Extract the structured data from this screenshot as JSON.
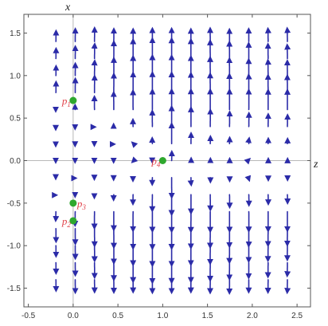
{
  "chart_data": {
    "type": "scatter",
    "subtype": "stream-plot",
    "title": "",
    "xlabel": "z",
    "ylabel": "x",
    "xlim": [
      -0.55,
      2.65
    ],
    "ylim": [
      -1.72,
      1.72
    ],
    "xticks": [
      -0.5,
      0.0,
      0.5,
      1.0,
      1.5,
      2.0,
      2.5
    ],
    "xtick_labels": [
      "-0.5",
      "0.0",
      "0.5",
      "1.0",
      "1.5",
      "2.0",
      "2.5"
    ],
    "yticks": [
      -1.5,
      -1.0,
      -0.5,
      0.0,
      0.5,
      1.0,
      1.5
    ],
    "ytick_labels": [
      "-1.5",
      "-1.0",
      "-0.5",
      "0.0",
      "0.5",
      "1.0",
      "1.5"
    ],
    "grid": false,
    "stream_region": {
      "z": [
        -0.3,
        2.5
      ],
      "x": [
        -1.5,
        1.5
      ]
    },
    "points": [
      {
        "name": "P1",
        "label_base": "p",
        "label_sub": "1",
        "z": 0.0,
        "x": 0.7071,
        "label_side": "left"
      },
      {
        "name": "P2",
        "label_base": "p",
        "label_sub": "2",
        "z": 0.0,
        "x": -0.7071,
        "label_side": "left"
      },
      {
        "name": "P3",
        "label_base": "p",
        "label_sub": "3",
        "z": 0.0,
        "x": -0.5,
        "label_side": "right"
      },
      {
        "name": "P4",
        "label_base": "p",
        "label_sub": "4",
        "z": 1.0,
        "x": 0.0,
        "label_side": "left"
      }
    ],
    "colors": {
      "stream": "#2b2ba8",
      "points": "#2ea82e",
      "point_labels": "#e0424a",
      "axes_lines": "#b8b8b8",
      "frame": "#555555"
    }
  }
}
